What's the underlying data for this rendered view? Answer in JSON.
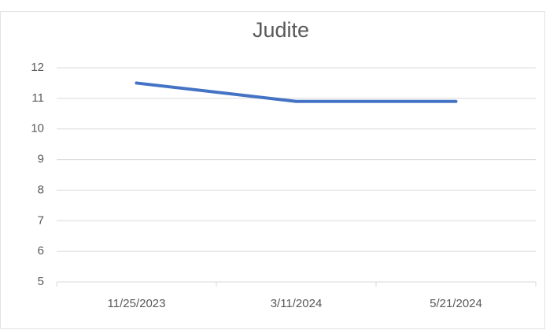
{
  "chart_data": {
    "type": "line",
    "title": "Judite",
    "categories": [
      "11/25/2023",
      "3/11/2024",
      "5/21/2024"
    ],
    "values": [
      11.5,
      10.9,
      10.9
    ],
    "color": "#4472c4",
    "ylim": [
      5,
      12
    ],
    "yticks": [
      5,
      6,
      7,
      8,
      9,
      10,
      11,
      12
    ],
    "grid": true
  }
}
